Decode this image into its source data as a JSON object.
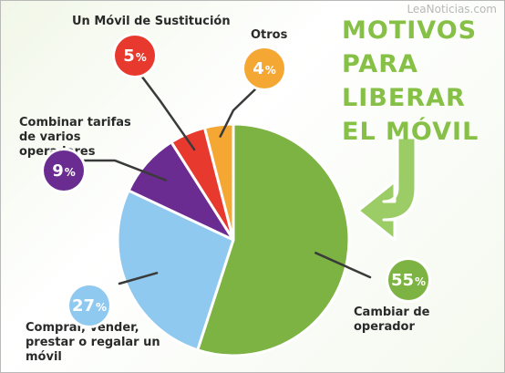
{
  "watermark": "LeaNoticias.com",
  "headline": [
    "MOTIVOS",
    "PARA",
    "LIBERAR",
    "EL MÓVIL"
  ],
  "colors": {
    "headline": "#86c046",
    "arrow": "#9ccc65"
  },
  "chart_data": {
    "type": "pie",
    "unit": "%",
    "slices": [
      {
        "label": "Cambiar de operador",
        "value": 55,
        "color": "#7cb342"
      },
      {
        "label": "Comprar, vender, prestar o regalar un móvil",
        "value": 27,
        "color": "#90c9ef"
      },
      {
        "label": "Combinar tarifas de varios operadores",
        "value": 9,
        "color": "#6a2c91"
      },
      {
        "label": "Un Móvil de Sustitución",
        "value": 5,
        "color": "#e8392f"
      },
      {
        "label": "Otros",
        "value": 4,
        "color": "#f5a733"
      }
    ]
  }
}
